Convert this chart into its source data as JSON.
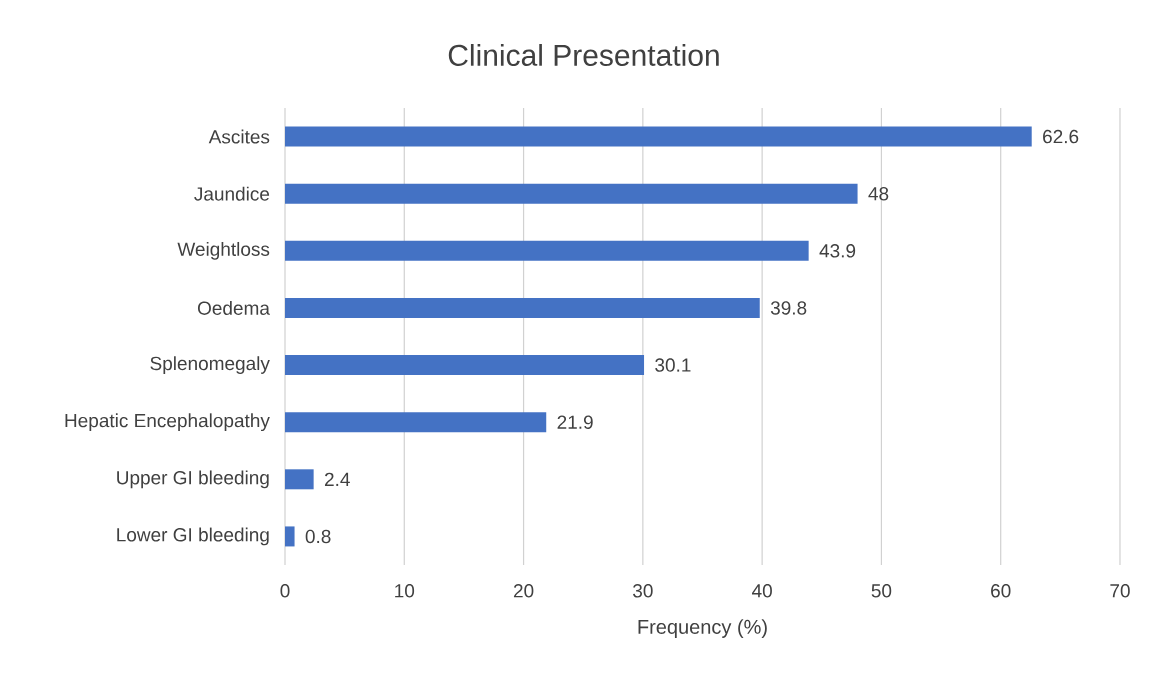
{
  "chart_data": {
    "type": "bar",
    "orientation": "horizontal",
    "title": "Clinical Presentation",
    "xlabel": "Frequency (%)",
    "categories": [
      "Ascites",
      "Jaundice",
      "Weightloss",
      "Oedema",
      "Splenomegaly",
      "Hepatic Encephalopathy",
      "Upper GI bleeding",
      "Lower GI bleeding"
    ],
    "values": [
      62.6,
      48,
      43.9,
      39.8,
      30.1,
      21.9,
      2.4,
      0.8
    ],
    "color": "#4472c4",
    "xlim": [
      0,
      70
    ],
    "xticks": [
      0,
      10,
      20,
      30,
      40,
      50,
      60,
      70
    ],
    "grid": "x",
    "data_labels": true
  }
}
